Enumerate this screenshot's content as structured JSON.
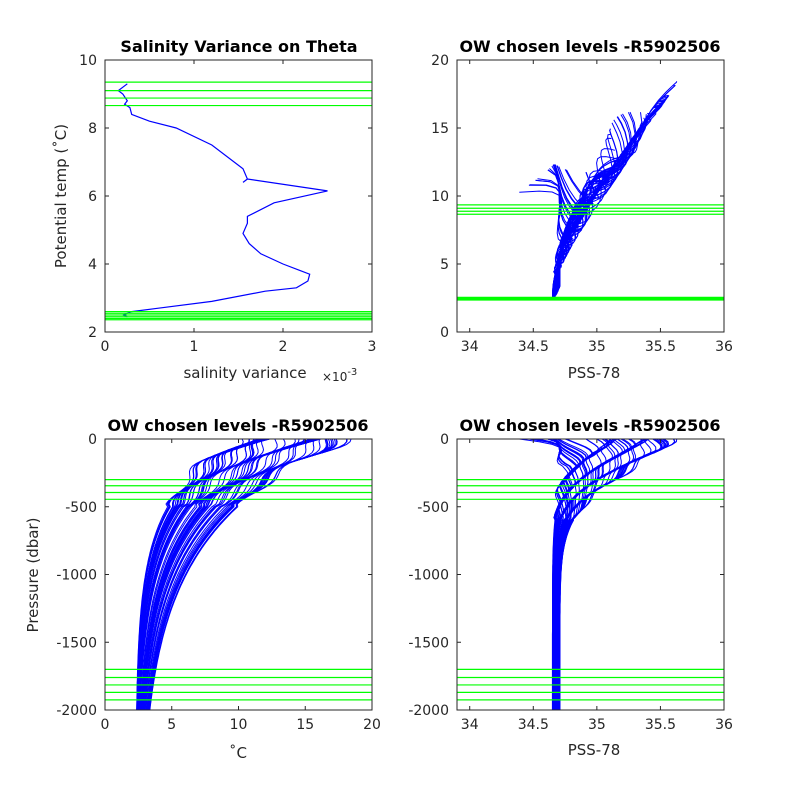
{
  "colors": {
    "profile": "#0000ff",
    "levels": "#00ff00",
    "axes": "#262626",
    "background": "#ffffff"
  },
  "chart_data": [
    {
      "id": "p1",
      "type": "line",
      "title": "Salinity Variance on Theta",
      "xlabel": "salinity variance",
      "x_exponent_label": "×10",
      "x_exponent_power": "-3",
      "ylabel": "Potential temp (˚C)",
      "xlim": [
        0,
        3
      ],
      "ylim": [
        2,
        10
      ],
      "xticks": [
        0,
        1,
        2,
        3
      ],
      "xtick_labels": [
        "0",
        "1",
        "2",
        "3"
      ],
      "yticks": [
        2,
        4,
        6,
        8,
        10
      ],
      "ytick_labels": [
        "2",
        "4",
        "6",
        "8",
        "10"
      ],
      "series": [
        {
          "x": [
            0.25,
            0.15,
            0.2,
            0.25,
            0.22,
            0.28,
            0.3,
            0.5,
            0.8,
            1.2,
            1.55,
            1.6,
            1.55,
            1.6,
            2.5,
            1.9,
            1.6,
            1.6,
            1.55,
            1.62,
            1.75,
            2.0,
            2.2,
            2.3,
            2.28,
            2.15,
            1.8,
            1.2,
            0.6,
            0.3,
            0.2,
            0.25
          ],
          "y": [
            9.3,
            9.1,
            9.0,
            8.8,
            8.7,
            8.6,
            8.4,
            8.2,
            8.0,
            7.5,
            6.8,
            6.5,
            6.4,
            6.5,
            6.15,
            5.8,
            5.4,
            5.2,
            4.9,
            4.6,
            4.3,
            4.0,
            3.8,
            3.7,
            3.5,
            3.3,
            3.2,
            2.9,
            2.7,
            2.6,
            2.5,
            2.45
          ]
        }
      ],
      "hlines": [
        9.35,
        9.1,
        8.88,
        8.66,
        2.6,
        2.55,
        2.5,
        2.45,
        2.4,
        2.36
      ]
    },
    {
      "id": "p2",
      "type": "line",
      "title": "OW chosen levels -R5902506",
      "xlabel": "PSS-78",
      "ylabel": "",
      "xlim": [
        33.9,
        36
      ],
      "ylim": [
        0,
        20
      ],
      "xticks": [
        34,
        34.5,
        35,
        35.5,
        36
      ],
      "xtick_labels": [
        "34",
        "34.5",
        "35",
        "35.5",
        "36"
      ],
      "yticks": [
        0,
        5,
        10,
        15,
        20
      ],
      "ytick_labels": [
        "0",
        "5",
        "10",
        "15",
        "20"
      ],
      "profile_model": "theta_salinity",
      "n_profiles": 70,
      "hlines": [
        9.35,
        9.1,
        8.88,
        8.66,
        2.55,
        2.5,
        2.45,
        2.4,
        2.35
      ]
    },
    {
      "id": "p3",
      "type": "line",
      "title": "OW chosen levels -R5902506",
      "xlabel": "˚C",
      "ylabel": "Pressure (dbar)",
      "xlim": [
        0,
        20
      ],
      "ylim": [
        -2000,
        0
      ],
      "xticks": [
        0,
        5,
        10,
        15,
        20
      ],
      "xtick_labels": [
        "0",
        "5",
        "10",
        "15",
        "20"
      ],
      "yticks": [
        -2000,
        -1500,
        -1000,
        -500,
        0
      ],
      "ytick_labels": [
        "-2000",
        "-1500",
        "-1000",
        "-500",
        "0"
      ],
      "profile_model": "temperature_pressure",
      "n_profiles": 70,
      "hlines": [
        -300,
        -345,
        -395,
        -445,
        -1700,
        -1760,
        -1815,
        -1870,
        -1925
      ]
    },
    {
      "id": "p4",
      "type": "line",
      "title": "OW chosen levels -R5902506",
      "xlabel": "PSS-78",
      "ylabel": "",
      "xlim": [
        33.9,
        36
      ],
      "ylim": [
        -2000,
        0
      ],
      "xticks": [
        34,
        34.5,
        35,
        35.5,
        36
      ],
      "xtick_labels": [
        "34",
        "34.5",
        "35",
        "35.5",
        "36"
      ],
      "yticks": [
        -2000,
        -1500,
        -1000,
        -500,
        0
      ],
      "ytick_labels": [
        "-2000",
        "-1500",
        "-1000",
        "-500",
        "0"
      ],
      "profile_model": "salinity_pressure",
      "n_profiles": 70,
      "hlines": [
        -300,
        -345,
        -395,
        -445,
        -1700,
        -1760,
        -1815,
        -1870,
        -1925
      ]
    }
  ]
}
